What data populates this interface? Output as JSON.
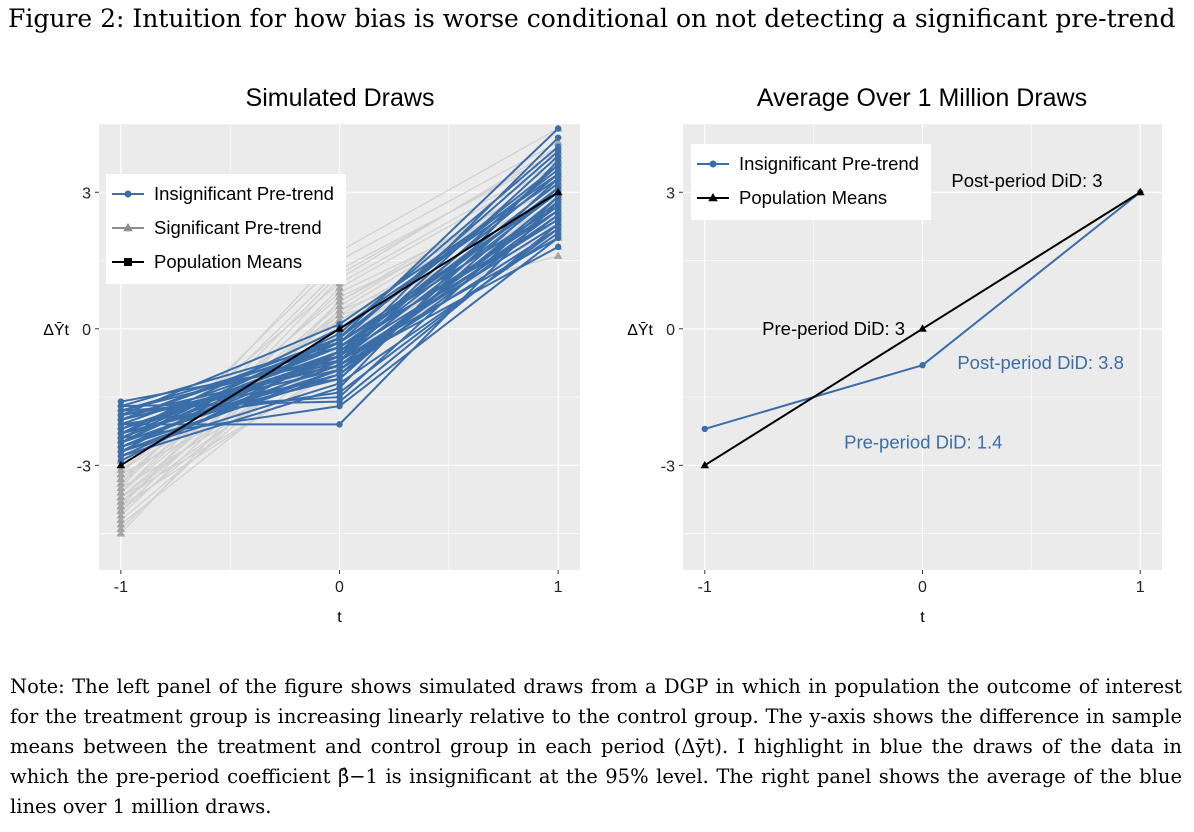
{
  "figure": {
    "title": "Figure 2: Intuition for how bias is worse conditional on not detecting a significant pre-trend",
    "note": "Note: The left panel of the figure shows simulated draws from a DGP in which in population the outcome of interest for the treatment group is increasing linearly relative to the control group. The y-axis shows the difference in sample means between the treatment and control group in each period (Δȳt). I highlight in blue the draws of the data in which the pre-period coefficient β̂−1 is insignificant at the 95% level. The right panel shows the average of the blue lines over 1 million draws."
  },
  "colors": {
    "insignificant": "#3a6ea8",
    "significant_line": "#c9c9c9",
    "significant_point": "#8c8c8c",
    "population": "#000000",
    "panel_bg": "#ebebeb",
    "grid": "#ffffff"
  },
  "chart_data": [
    {
      "type": "line",
      "title": "Simulated Draws",
      "xlabel": "t",
      "ylabel": "ΔȲt",
      "x": [
        -1,
        0,
        1
      ],
      "xticks": [
        "-1",
        "0",
        "1"
      ],
      "yticks": [
        {
          "v": -3,
          "label": "-3"
        },
        {
          "v": 0,
          "label": "0"
        },
        {
          "v": 3,
          "label": "3"
        }
      ],
      "xlim": [
        -1.1,
        1.1
      ],
      "ylim": [
        -5.3,
        4.5
      ],
      "legend_position": "top-left",
      "legend": [
        "Insignificant Pre-trend",
        "Significant Pre-trend",
        "Population Means"
      ],
      "series": [
        {
          "name": "Significant Pre-trend",
          "style": "significant",
          "lines": [
            [
              -4.2,
              -0.2,
              2.6
            ],
            [
              -4.0,
              0.6,
              3.2
            ],
            [
              -3.9,
              0.9,
              3.6
            ],
            [
              -3.8,
              -0.4,
              2.2
            ],
            [
              -3.7,
              0.3,
              3.0
            ],
            [
              -3.6,
              1.2,
              3.9
            ],
            [
              -3.5,
              -0.6,
              2.0
            ],
            [
              -3.4,
              0.5,
              3.4
            ],
            [
              -3.3,
              0.0,
              2.8
            ],
            [
              -3.2,
              1.5,
              4.1
            ],
            [
              -4.4,
              0.2,
              2.5
            ],
            [
              -3.9,
              -0.8,
              1.8
            ],
            [
              -3.6,
              0.8,
              3.1
            ],
            [
              -3.1,
              -0.3,
              2.4
            ],
            [
              -3.0,
              1.0,
              3.7
            ],
            [
              -4.1,
              0.4,
              3.3
            ],
            [
              -3.7,
              -0.1,
              2.7
            ],
            [
              -3.5,
              1.7,
              4.4
            ],
            [
              -3.3,
              0.7,
              2.9
            ],
            [
              -4.3,
              -0.5,
              2.1
            ],
            [
              -3.8,
              0.1,
              3.5
            ],
            [
              -3.4,
              1.3,
              3.8
            ],
            [
              -2.9,
              0.2,
              2.6
            ],
            [
              -4.0,
              -0.2,
              3.0
            ],
            [
              -3.6,
              0.4,
              2.3
            ],
            [
              -3.2,
              -0.7,
              2.9
            ],
            [
              -4.5,
              0.6,
              3.4
            ],
            [
              -3.9,
              1.1,
              4.0
            ],
            [
              -3.1,
              0.3,
              1.6
            ],
            [
              -3.7,
              -0.9,
              2.5
            ]
          ]
        },
        {
          "name": "Insignificant Pre-trend",
          "style": "insignificant",
          "lines": [
            [
              -1.6,
              -0.7,
              2.0
            ],
            [
              -1.8,
              -0.6,
              2.4
            ],
            [
              -2.0,
              -0.8,
              1.8
            ],
            [
              -2.2,
              -0.5,
              2.6
            ],
            [
              -1.7,
              -1.6,
              2.3
            ],
            [
              -1.9,
              0.1,
              3.4
            ],
            [
              -2.3,
              -0.4,
              3.0
            ],
            [
              -2.5,
              -0.9,
              2.2
            ],
            [
              -2.1,
              -2.1,
              2.8
            ],
            [
              -2.4,
              -0.2,
              4.4
            ],
            [
              -2.6,
              -1.0,
              2.5
            ],
            [
              -2.8,
              -0.7,
              3.6
            ],
            [
              -2.0,
              -0.3,
              3.9
            ],
            [
              -2.7,
              -1.2,
              2.1
            ],
            [
              -2.2,
              -0.6,
              4.2
            ],
            [
              -1.8,
              -1.5,
              2.9
            ],
            [
              -2.9,
              -0.5,
              3.2
            ],
            [
              -2.3,
              0.0,
              3.3
            ],
            [
              -2.5,
              -0.8,
              2.7
            ],
            [
              -1.9,
              -1.1,
              3.1
            ],
            [
              -2.6,
              -0.6,
              3.8
            ],
            [
              -2.1,
              -0.4,
              2.4
            ],
            [
              -2.4,
              -1.7,
              2.0
            ],
            [
              -2.7,
              -0.2,
              3.5
            ],
            [
              -2.0,
              -0.9,
              2.6
            ],
            [
              -1.7,
              -0.3,
              3.0
            ],
            [
              -2.8,
              -1.3,
              3.7
            ],
            [
              -2.2,
              -0.7,
              2.3
            ],
            [
              -2.5,
              -0.1,
              4.0
            ],
            [
              -2.3,
              -1.0,
              2.9
            ],
            [
              -1.9,
              -0.8,
              2.5
            ],
            [
              -2.6,
              -0.5,
              3.4
            ],
            [
              -2.1,
              -1.4,
              2.2
            ],
            [
              -2.4,
              -0.6,
              3.1
            ],
            [
              -2.0,
              -0.2,
              3.6
            ],
            [
              -2.7,
              -0.9,
              2.8
            ],
            [
              -1.8,
              -0.4,
              2.4
            ],
            [
              -2.3,
              -1.1,
              3.3
            ],
            [
              -2.5,
              -0.3,
              2.7
            ],
            [
              -2.2,
              -0.7,
              3.0
            ]
          ]
        },
        {
          "name": "Population Means",
          "style": "population",
          "lines": [
            [
              -3,
              0,
              3
            ]
          ]
        }
      ]
    },
    {
      "type": "line",
      "title": "Average Over 1 Million Draws",
      "xlabel": "t",
      "ylabel": "ΔȲt",
      "x": [
        -1,
        0,
        1
      ],
      "xticks": [
        "-1",
        "0",
        "1"
      ],
      "yticks": [
        {
          "v": -3,
          "label": "-3"
        },
        {
          "v": 0,
          "label": "0"
        },
        {
          "v": 3,
          "label": "3"
        }
      ],
      "xlim": [
        -1.1,
        1.1
      ],
      "ylim": [
        -5.3,
        4.5
      ],
      "legend_position": "top-left",
      "legend": [
        "Insignificant Pre-trend",
        "Population Means"
      ],
      "series": [
        {
          "name": "Insignificant Pre-trend",
          "style": "insignificant",
          "lines": [
            [
              -2.2,
              -0.8,
              3.0
            ]
          ]
        },
        {
          "name": "Population Means",
          "style": "population",
          "lines": [
            [
              -3,
              0,
              3
            ]
          ]
        }
      ],
      "annotations": [
        {
          "text": "Post-period DiD: 3",
          "x": 0.48,
          "y": 3.25,
          "anchor": "middle",
          "style": "population"
        },
        {
          "text": "Pre-period DiD: 3",
          "x": -0.08,
          "y": 0.0,
          "anchor": "end",
          "style": "population"
        },
        {
          "text": "Post-period DiD: 3.8",
          "x": 0.16,
          "y": -0.75,
          "anchor": "start",
          "style": "insignificant"
        },
        {
          "text": "Pre-period DiD: 1.4",
          "x": -0.36,
          "y": -2.5,
          "anchor": "start",
          "style": "insignificant"
        }
      ]
    }
  ]
}
